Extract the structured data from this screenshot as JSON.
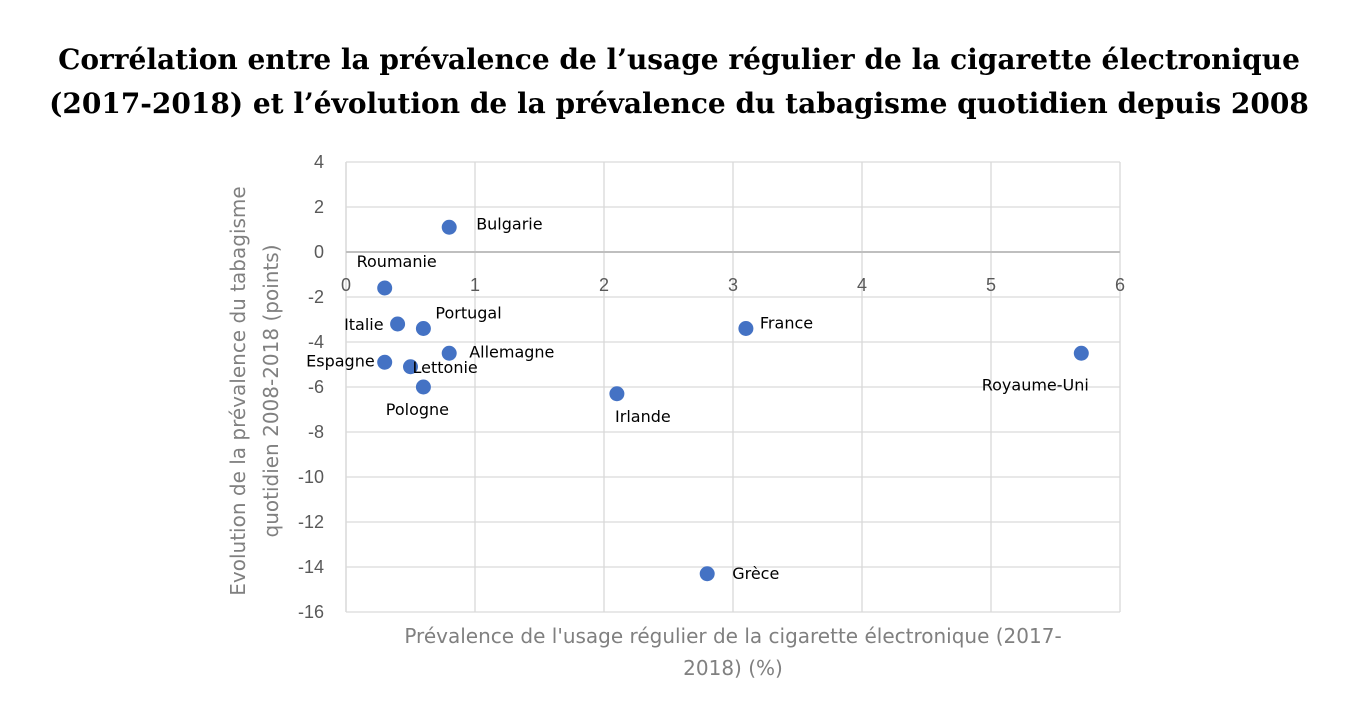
{
  "title": {
    "line1": "Corrélation entre la prévalence de l’usage régulier de la cigarette électronique",
    "line2": "(2017-2018) et l’évolution de la prévalence du tabagisme quotidien depuis 2008"
  },
  "chart_data": {
    "type": "scatter",
    "title": "Corrélation entre la prévalence de l’usage régulier de la cigarette électronique (2017-2018) et l’évolution de la prévalence du tabagisme quotidien depuis 2008",
    "xlabel_lines": [
      "Prévalence de l'usage régulier de la cigarette électronique (2017-",
      "2018) (%)"
    ],
    "ylabel_lines": [
      "Evolution de la prévalence du tabagisme",
      "quotidien  2008-2018 (points)"
    ],
    "xlim": [
      0,
      6
    ],
    "ylim": [
      -16,
      4
    ],
    "xticks": [
      0,
      1,
      2,
      3,
      4,
      5,
      6
    ],
    "yticks": [
      4,
      2,
      0,
      -2,
      -4,
      -6,
      -8,
      -10,
      -12,
      -14,
      -16
    ],
    "grid": true,
    "marker_color": "#4472C4",
    "points": [
      {
        "label": "Bulgarie",
        "x": 0.8,
        "y": 1.1
      },
      {
        "label": "Roumanie",
        "x": 0.3,
        "y": -1.6
      },
      {
        "label": "Italie",
        "x": 0.4,
        "y": -3.2
      },
      {
        "label": "Portugal",
        "x": 0.6,
        "y": -3.4
      },
      {
        "label": "Allemagne",
        "x": 0.8,
        "y": -4.5
      },
      {
        "label": "Espagne",
        "x": 0.3,
        "y": -4.9
      },
      {
        "label": "Lettonie",
        "x": 0.5,
        "y": -5.1
      },
      {
        "label": "Pologne",
        "x": 0.6,
        "y": -6.0
      },
      {
        "label": "Irlande",
        "x": 2.1,
        "y": -6.3
      },
      {
        "label": "France",
        "x": 3.1,
        "y": -3.4
      },
      {
        "label": "Royaume-Uni",
        "x": 5.7,
        "y": -4.5
      },
      {
        "label": "Grèce",
        "x": 2.8,
        "y": -14.3
      }
    ]
  }
}
